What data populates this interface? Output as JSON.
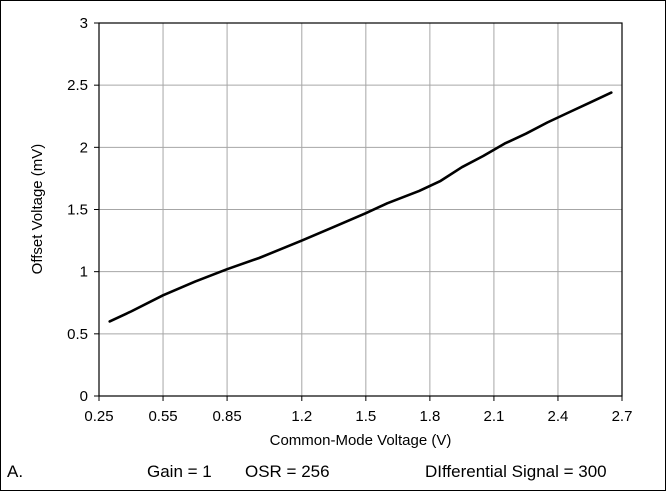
{
  "chart_data": {
    "type": "line",
    "title": "",
    "xlabel": "Common-Mode Voltage (V)",
    "ylabel": "Offset Voltage (mV)",
    "xlim": [
      0.25,
      2.7
    ],
    "ylim": [
      0,
      3
    ],
    "xticks": [
      0.25,
      0.55,
      0.85,
      1.2,
      1.5,
      1.8,
      2.1,
      2.4,
      2.7
    ],
    "xtick_labels": [
      "0.25",
      "0.55",
      "0.85",
      "1.2",
      "1.5",
      "1.8",
      "2.1",
      "2.4",
      "2.7"
    ],
    "yticks": [
      0,
      0.5,
      1,
      1.5,
      2,
      2.5,
      3
    ],
    "ytick_labels": [
      "0",
      "0.5",
      "1",
      "1.5",
      "2",
      "2.5",
      "3"
    ],
    "grid": true,
    "legend": "none",
    "series": [
      {
        "color": "#000000",
        "x": [
          0.3,
          0.4,
          0.55,
          0.7,
          0.85,
          1.0,
          1.1,
          1.2,
          1.35,
          1.5,
          1.6,
          1.75,
          1.85,
          1.95,
          2.05,
          2.15,
          2.25,
          2.35,
          2.45,
          2.55,
          2.65
        ],
        "y": [
          0.6,
          0.68,
          0.81,
          0.92,
          1.02,
          1.11,
          1.18,
          1.25,
          1.36,
          1.47,
          1.55,
          1.65,
          1.73,
          1.84,
          1.93,
          2.03,
          2.11,
          2.2,
          2.28,
          2.36,
          2.44
        ]
      }
    ]
  },
  "caption": {
    "figure_label": "A.",
    "gain": "Gain = 1",
    "osr": "OSR = 256",
    "signal": "DIfferential Signal = 300"
  }
}
